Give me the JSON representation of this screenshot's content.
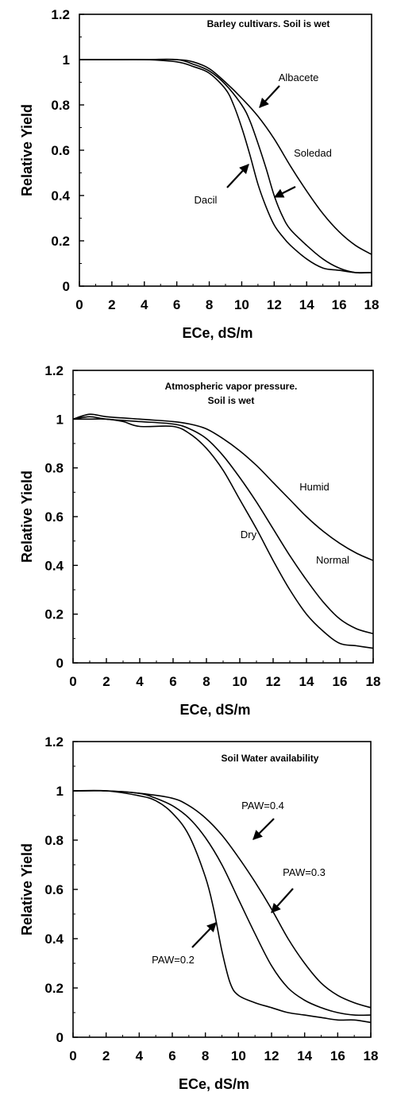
{
  "chart_data": [
    {
      "type": "line",
      "title": "Barley cultivars. Soil is wet",
      "xlabel": "ECe, dS/m",
      "ylabel": "Relative Yield",
      "xlim": [
        0,
        18
      ],
      "ylim": [
        0,
        1.2
      ],
      "xticks": [
        0,
        2,
        4,
        6,
        8,
        10,
        12,
        14,
        16,
        18
      ],
      "yticks": [
        0,
        0.2,
        0.4,
        0.6,
        0.8,
        1,
        1.2
      ],
      "xtick_labels": [
        "0",
        "2",
        "4",
        "6",
        "8",
        "10",
        "12",
        "14",
        "16",
        "18"
      ],
      "ytick_labels": [
        "0",
        "0.2",
        "0.4",
        "0.6",
        "0.8",
        "1",
        "1.2"
      ],
      "grid": false,
      "legend": "inline labels with arrows",
      "series": [
        {
          "name": "Albacete",
          "points": [
            [
              0,
              1
            ],
            [
              2,
              1
            ],
            [
              4,
              1
            ],
            [
              6,
              1
            ],
            [
              7,
              0.99
            ],
            [
              8,
              0.96
            ],
            [
              9,
              0.9
            ],
            [
              10,
              0.83
            ],
            [
              11,
              0.75
            ],
            [
              12,
              0.65
            ],
            [
              13,
              0.53
            ],
            [
              14,
              0.42
            ],
            [
              15,
              0.32
            ],
            [
              16,
              0.24
            ],
            [
              17,
              0.18
            ],
            [
              18,
              0.14
            ]
          ]
        },
        {
          "name": "Soledad",
          "points": [
            [
              0,
              1
            ],
            [
              2,
              1
            ],
            [
              4,
              1
            ],
            [
              6,
              1
            ],
            [
              7,
              0.98
            ],
            [
              8,
              0.95
            ],
            [
              9,
              0.89
            ],
            [
              10,
              0.8
            ],
            [
              10.5,
              0.73
            ],
            [
              11,
              0.63
            ],
            [
              11.5,
              0.52
            ],
            [
              12,
              0.4
            ],
            [
              12.5,
              0.31
            ],
            [
              13,
              0.25
            ],
            [
              14,
              0.18
            ],
            [
              15,
              0.12
            ],
            [
              16,
              0.08
            ],
            [
              17,
              0.06
            ],
            [
              18,
              0.06
            ]
          ]
        },
        {
          "name": "Dacil",
          "points": [
            [
              0,
              1
            ],
            [
              2,
              1
            ],
            [
              4,
              1
            ],
            [
              6,
              0.99
            ],
            [
              7,
              0.97
            ],
            [
              8,
              0.94
            ],
            [
              9,
              0.87
            ],
            [
              9.5,
              0.8
            ],
            [
              10,
              0.7
            ],
            [
              10.5,
              0.58
            ],
            [
              11,
              0.45
            ],
            [
              11.5,
              0.35
            ],
            [
              12,
              0.27
            ],
            [
              12.5,
              0.22
            ],
            [
              13,
              0.18
            ],
            [
              14,
              0.12
            ],
            [
              15,
              0.08
            ],
            [
              16,
              0.07
            ],
            [
              17,
              0.06
            ],
            [
              18,
              0.06
            ]
          ]
        }
      ],
      "labels": [
        {
          "text": "Albacete",
          "series": "Albacete"
        },
        {
          "text": "Soledad",
          "series": "Soledad"
        },
        {
          "text": "Dacil",
          "series": "Dacil"
        }
      ]
    },
    {
      "type": "line",
      "title": "Atmospheric vapor pressure. Soil is wet",
      "title_lines": [
        "Atmospheric vapor pressure.",
        "Soil is wet"
      ],
      "xlabel": "ECe, dS/m",
      "ylabel": "Relative Yield",
      "xlim": [
        0,
        18
      ],
      "ylim": [
        0,
        1.2
      ],
      "xticks": [
        0,
        2,
        4,
        6,
        8,
        10,
        12,
        14,
        16,
        18
      ],
      "yticks": [
        0,
        0.2,
        0.4,
        0.6,
        0.8,
        1,
        1.2
      ],
      "xtick_labels": [
        "0",
        "2",
        "4",
        "6",
        "8",
        "10",
        "12",
        "14",
        "16",
        "18"
      ],
      "ytick_labels": [
        "0",
        "0.2",
        "0.4",
        "0.6",
        "0.8",
        "1",
        "1.2"
      ],
      "grid": false,
      "legend": "inline labels",
      "series": [
        {
          "name": "Humid",
          "points": [
            [
              0,
              1
            ],
            [
              1,
              1.02
            ],
            [
              2,
              1.01
            ],
            [
              4,
              1
            ],
            [
              6,
              0.99
            ],
            [
              7,
              0.98
            ],
            [
              8,
              0.96
            ],
            [
              9,
              0.92
            ],
            [
              10,
              0.87
            ],
            [
              11,
              0.81
            ],
            [
              12,
              0.74
            ],
            [
              13,
              0.67
            ],
            [
              14,
              0.6
            ],
            [
              15,
              0.54
            ],
            [
              16,
              0.49
            ],
            [
              17,
              0.45
            ],
            [
              18,
              0.42
            ]
          ]
        },
        {
          "name": "Normal",
          "points": [
            [
              0,
              1
            ],
            [
              1,
              1.01
            ],
            [
              2,
              1
            ],
            [
              4,
              0.99
            ],
            [
              6,
              0.98
            ],
            [
              7,
              0.96
            ],
            [
              8,
              0.92
            ],
            [
              9,
              0.85
            ],
            [
              10,
              0.76
            ],
            [
              11,
              0.66
            ],
            [
              12,
              0.55
            ],
            [
              13,
              0.44
            ],
            [
              14,
              0.34
            ],
            [
              15,
              0.25
            ],
            [
              16,
              0.18
            ],
            [
              17,
              0.14
            ],
            [
              18,
              0.12
            ]
          ]
        },
        {
          "name": "Dry",
          "points": [
            [
              0,
              1
            ],
            [
              1,
              1
            ],
            [
              2,
              1
            ],
            [
              3,
              0.99
            ],
            [
              4,
              0.97
            ],
            [
              6,
              0.97
            ],
            [
              7,
              0.94
            ],
            [
              8,
              0.88
            ],
            [
              9,
              0.79
            ],
            [
              10,
              0.67
            ],
            [
              11,
              0.55
            ],
            [
              12,
              0.42
            ],
            [
              13,
              0.3
            ],
            [
              14,
              0.2
            ],
            [
              15,
              0.13
            ],
            [
              16,
              0.08
            ],
            [
              17,
              0.07
            ],
            [
              18,
              0.06
            ]
          ]
        }
      ],
      "labels": [
        {
          "text": "Humid",
          "series": "Humid"
        },
        {
          "text": "Normal",
          "series": "Normal"
        },
        {
          "text": "Dry",
          "series": "Dry"
        }
      ]
    },
    {
      "type": "line",
      "title": "Soil Water availability",
      "xlabel": "ECe, dS/m",
      "ylabel": "Relative Yield",
      "xlim": [
        0,
        18
      ],
      "ylim": [
        0,
        1.2
      ],
      "xticks": [
        0,
        2,
        4,
        6,
        8,
        10,
        12,
        14,
        16,
        18
      ],
      "yticks": [
        0,
        0.2,
        0.4,
        0.6,
        0.8,
        1,
        1.2
      ],
      "xtick_labels": [
        "0",
        "2",
        "4",
        "6",
        "8",
        "10",
        "12",
        "14",
        "16",
        "18"
      ],
      "ytick_labels": [
        "0",
        "0.2",
        "0.4",
        "0.6",
        "0.8",
        "1",
        "1.2"
      ],
      "grid": false,
      "legend": "inline labels with arrows",
      "series": [
        {
          "name": "PAW=0.4",
          "points": [
            [
              0,
              1
            ],
            [
              2,
              1
            ],
            [
              4,
              0.99
            ],
            [
              6,
              0.97
            ],
            [
              7,
              0.94
            ],
            [
              8,
              0.89
            ],
            [
              9,
              0.82
            ],
            [
              10,
              0.73
            ],
            [
              11,
              0.63
            ],
            [
              12,
              0.52
            ],
            [
              13,
              0.4
            ],
            [
              14,
              0.3
            ],
            [
              15,
              0.22
            ],
            [
              16,
              0.17
            ],
            [
              17,
              0.14
            ],
            [
              18,
              0.12
            ]
          ]
        },
        {
          "name": "PAW=0.3",
          "points": [
            [
              0,
              1
            ],
            [
              2,
              1
            ],
            [
              4,
              0.99
            ],
            [
              5,
              0.97
            ],
            [
              6,
              0.94
            ],
            [
              7,
              0.89
            ],
            [
              8,
              0.81
            ],
            [
              9,
              0.7
            ],
            [
              10,
              0.56
            ],
            [
              11,
              0.42
            ],
            [
              12,
              0.29
            ],
            [
              13,
              0.2
            ],
            [
              14,
              0.15
            ],
            [
              15,
              0.12
            ],
            [
              16,
              0.1
            ],
            [
              17,
              0.09
            ],
            [
              18,
              0.09
            ]
          ]
        },
        {
          "name": "PAW=0.2",
          "points": [
            [
              0,
              1
            ],
            [
              2,
              1
            ],
            [
              4,
              0.98
            ],
            [
              5,
              0.96
            ],
            [
              6,
              0.91
            ],
            [
              7,
              0.82
            ],
            [
              8,
              0.65
            ],
            [
              8.5,
              0.52
            ],
            [
              9,
              0.35
            ],
            [
              9.5,
              0.22
            ],
            [
              10,
              0.17
            ],
            [
              11,
              0.14
            ],
            [
              12,
              0.12
            ],
            [
              13,
              0.1
            ],
            [
              14,
              0.09
            ],
            [
              15,
              0.08
            ],
            [
              16,
              0.07
            ],
            [
              17,
              0.07
            ],
            [
              18,
              0.06
            ]
          ]
        }
      ],
      "labels": [
        {
          "text": "PAW=0.4",
          "series": "PAW=0.4"
        },
        {
          "text": "PAW=0.3",
          "series": "PAW=0.3"
        },
        {
          "text": "PAW=0.2",
          "series": "PAW=0.2"
        }
      ]
    }
  ]
}
